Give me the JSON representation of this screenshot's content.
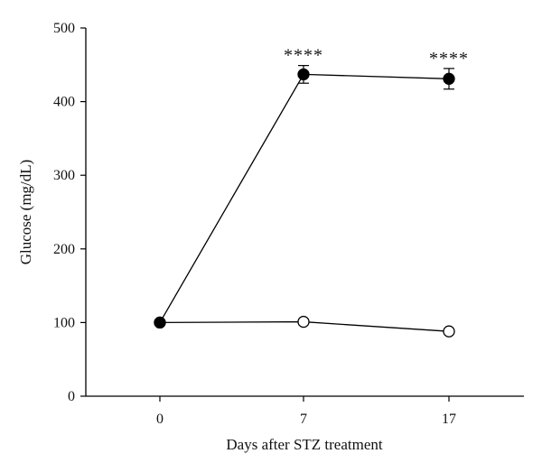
{
  "chart_data": {
    "type": "line",
    "title": "",
    "xlabel": "Days after STZ treatment",
    "ylabel": "Glucose (mg/dL)",
    "x": [
      0,
      7,
      17
    ],
    "xticks": [
      "0",
      "7",
      "17"
    ],
    "ylim": [
      0,
      500
    ],
    "yticks": [
      "0",
      "100",
      "200",
      "300",
      "400",
      "500"
    ],
    "grid": false,
    "series": [
      {
        "marker": "filled-circle",
        "color": "#000000",
        "values": [
          100,
          437,
          431
        ],
        "errors": [
          0,
          12,
          14
        ]
      },
      {
        "marker": "open-circle",
        "color": "#000000",
        "values": [
          100,
          101,
          88
        ],
        "errors": [
          0,
          0,
          0
        ]
      }
    ],
    "annotations": [
      {
        "x": 7,
        "text": "****",
        "series": 0
      },
      {
        "x": 17,
        "text": "****",
        "series": 0
      }
    ]
  }
}
